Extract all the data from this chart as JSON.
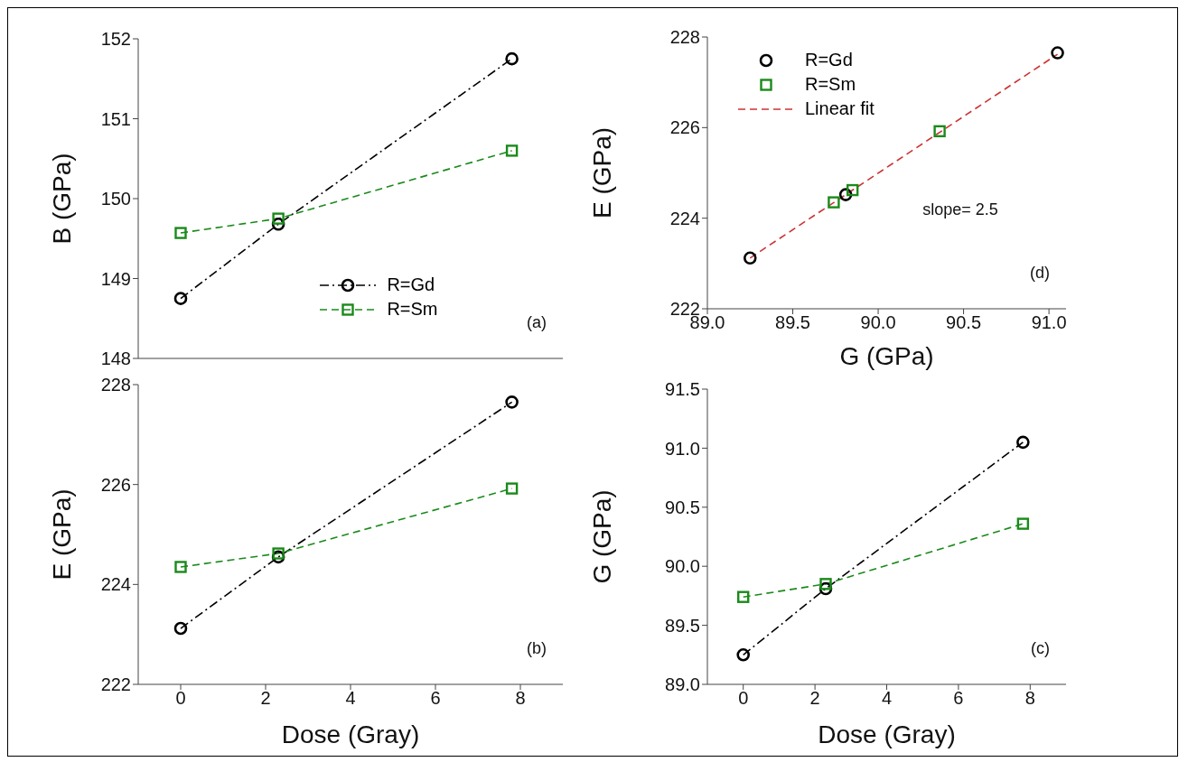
{
  "chart_data": [
    {
      "type": "line",
      "ylabel": "B (GPa)",
      "xlim": [
        -1,
        9
      ],
      "xticks": [
        0,
        2,
        4,
        6,
        8
      ],
      "ylim": [
        148,
        152
      ],
      "yticks": [
        148,
        149,
        150,
        151,
        152
      ],
      "tick_labels": "y",
      "legend": "bottom right",
      "annotations": [
        "(a)"
      ],
      "series": [
        {
          "name": "R=Gd",
          "color": "#000000",
          "x": [
            0,
            2.3,
            7.8
          ],
          "values": [
            148.75,
            149.68,
            151.75
          ],
          "marker": "circle",
          "line_style": "dashdot"
        },
        {
          "name": "R=Sm",
          "color": "#1a8a1a",
          "x": [
            0,
            2.3,
            7.8
          ],
          "values": [
            149.57,
            149.75,
            150.6
          ],
          "marker": "square",
          "line_style": "dashed"
        }
      ]
    },
    {
      "type": "scatter",
      "xlabel": "G (GPa)",
      "ylabel": "E (GPa)",
      "xlim": [
        89.0,
        91.1
      ],
      "xticks": [
        {
          "value": 89,
          "label": "89.0"
        },
        89.5,
        {
          "value": 90,
          "label": "90.0"
        },
        90.5,
        {
          "value": 91,
          "label": "91.0"
        }
      ],
      "ylim": [
        222,
        228
      ],
      "yticks": [
        222,
        224,
        226,
        228
      ],
      "legend": "top left",
      "annotations": [
        "slope= 2.5",
        "(d)"
      ],
      "series": [
        {
          "name": "R=Gd",
          "color": "#000000",
          "x": [
            89.25,
            89.81,
            91.05
          ],
          "values": [
            223.12,
            224.52,
            227.65
          ],
          "marker": "circle"
        },
        {
          "name": "R=Sm",
          "color": "#1a8a1a",
          "x": [
            89.74,
            89.85,
            90.36
          ],
          "values": [
            224.35,
            224.62,
            225.92
          ],
          "marker": "square"
        },
        {
          "name": "Linear fit",
          "type": "line",
          "color": "#cc3333",
          "x": [
            89.25,
            91.05
          ],
          "values": [
            223.12,
            227.62
          ],
          "marker": "none",
          "line_style": "dashed"
        }
      ]
    },
    {
      "type": "line",
      "xlabel": "Dose (Gray)",
      "ylabel": "E (GPa)",
      "xlim": [
        -1,
        9
      ],
      "xticks": [
        0,
        2,
        4,
        6,
        8
      ],
      "ylim": [
        222,
        228
      ],
      "yticks": [
        222,
        224,
        226,
        228
      ],
      "annotations": [
        "(b)"
      ],
      "series": [
        {
          "color": "#000000",
          "x": [
            0,
            2.3,
            7.8
          ],
          "values": [
            223.12,
            224.55,
            227.65
          ],
          "marker": "circle",
          "line_style": "dashdot"
        },
        {
          "color": "#1a8a1a",
          "x": [
            0,
            2.3,
            7.8
          ],
          "values": [
            224.35,
            224.62,
            225.92
          ],
          "marker": "square",
          "line_style": "dashed"
        }
      ]
    },
    {
      "type": "line",
      "xlabel": "Dose (Gray)",
      "ylabel": "G (GPa)",
      "xlim": [
        -1,
        9
      ],
      "xticks": [
        0,
        2,
        4,
        6,
        8
      ],
      "ylim": [
        89.0,
        91.5
      ],
      "yticks": [
        {
          "value": 89,
          "label": "89.0"
        },
        89.5,
        {
          "value": 90,
          "label": "90.0"
        },
        90.5,
        {
          "value": 91,
          "label": "91.0"
        },
        91.5
      ],
      "annotations": [
        "(c)"
      ],
      "series": [
        {
          "color": "#000000",
          "x": [
            0,
            2.3,
            7.8
          ],
          "values": [
            89.25,
            89.81,
            91.05
          ],
          "marker": "circle",
          "line_style": "dashdot"
        },
        {
          "color": "#1a8a1a",
          "x": [
            0,
            2.3,
            7.8
          ],
          "values": [
            89.74,
            89.85,
            90.36
          ],
          "marker": "square",
          "line_style": "dashed"
        }
      ]
    }
  ]
}
